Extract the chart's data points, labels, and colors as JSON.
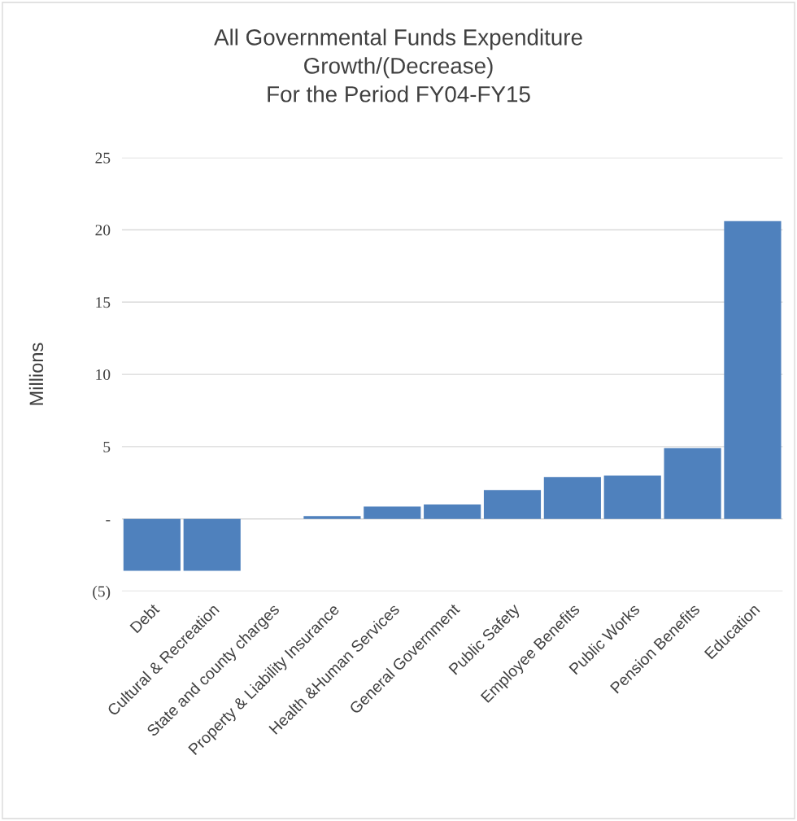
{
  "chart_data": {
    "type": "bar",
    "title": "All Governmental Funds Expenditure\nGrowth/(Decrease)\nFor the Period FY04-FY15",
    "ylabel": "Millions",
    "categories": [
      "Debt",
      "Cultural & Recreation",
      "State and county charges",
      "Property & Liability Insurance",
      "Health &Human Services",
      "General Government",
      "Public Safety",
      "Employee Benefits",
      "Public Works",
      "Pension Benefits",
      "Education"
    ],
    "values": [
      -3.6,
      -3.6,
      0,
      0.2,
      0.85,
      1.0,
      2.0,
      2.9,
      3.0,
      4.9,
      20.6
    ],
    "color": "#4f81bd",
    "ylim": [
      -5,
      25
    ],
    "yticks": [
      {
        "value": -5,
        "label": "(5)"
      },
      {
        "value": 0,
        "label": "-"
      },
      5,
      10,
      15,
      20,
      25
    ],
    "grid": "y"
  }
}
